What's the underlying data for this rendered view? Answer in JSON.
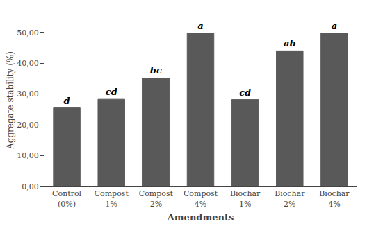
{
  "chart_data": {
    "type": "bar",
    "categories": [
      "Control\n(0%)",
      "Compost\n1%",
      "Compost\n2%",
      "Compost\n4%",
      "Biochar\n1%",
      "Biochar\n2%",
      "Biochar\n4%"
    ],
    "values": [
      25.5,
      28.3,
      35.2,
      49.8,
      28.2,
      44.0,
      49.8
    ],
    "color": "#595959",
    "annotations": [
      "d",
      "cd",
      "bc",
      "a",
      "cd",
      "ab",
      "a"
    ],
    "xlabel": "Amendments",
    "ylabel": "Aggregate stability (%)",
    "ylim": [
      0,
      56
    ],
    "yticks": [
      {
        "value": 0,
        "label": "0,00"
      },
      {
        "value": 10,
        "label": "10,00"
      },
      {
        "value": 20,
        "label": "20,00"
      },
      {
        "value": 30,
        "label": "30,00"
      },
      {
        "value": 40,
        "label": "40,00"
      },
      {
        "value": 50,
        "label": "50,00"
      }
    ],
    "grid": false
  }
}
